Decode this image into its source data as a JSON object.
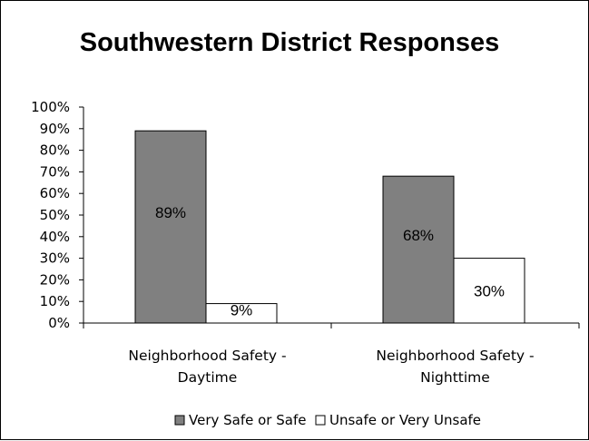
{
  "chart_data": {
    "type": "bar",
    "title": "Southwestern District Responses",
    "categories": [
      [
        "Neighborhood Safety -",
        "Daytime"
      ],
      [
        "Neighborhood Safety -",
        "Nighttime"
      ]
    ],
    "series": [
      {
        "name": "Very Safe or Safe",
        "values": [
          89,
          68
        ],
        "labels": [
          "89%",
          "68%"
        ],
        "color": "#808080"
      },
      {
        "name": "Unsafe or Very Unsafe",
        "values": [
          9,
          30
        ],
        "labels": [
          "9%",
          "30%"
        ],
        "color": "#ffffff"
      }
    ],
    "ylim": [
      0,
      100
    ],
    "yticks": [
      "0%",
      "10%",
      "20%",
      "30%",
      "40%",
      "50%",
      "60%",
      "70%",
      "80%",
      "90%",
      "100%"
    ],
    "ytick_values": [
      0,
      10,
      20,
      30,
      40,
      50,
      60,
      70,
      80,
      90,
      100
    ],
    "grid": false,
    "legend_position": "bottom"
  }
}
